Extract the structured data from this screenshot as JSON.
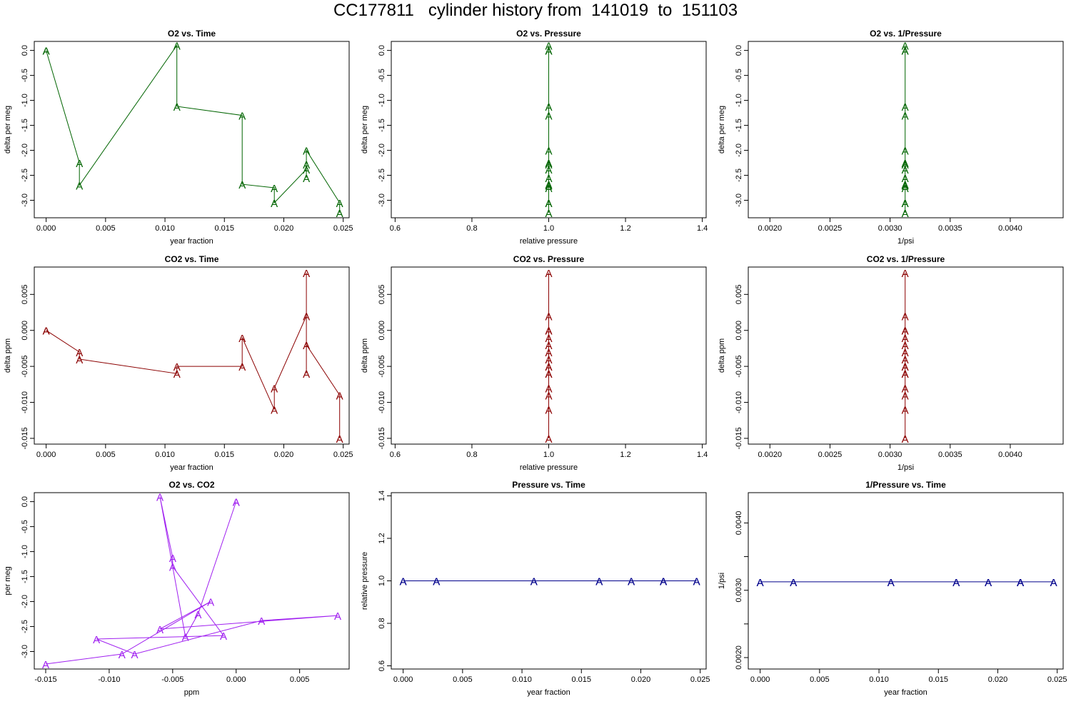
{
  "title": "CC177811   cylinder history from  141019  to  151103",
  "marker_label": "A",
  "colors": {
    "o2": "#006400",
    "co2": "#8b0000",
    "o2co2": "#a020f0",
    "pressure": "#00008b"
  },
  "chart_data": [
    {
      "type": "line",
      "title": "O2 vs. Time",
      "xlabel": "year fraction",
      "ylabel": "delta per meg",
      "xlim": [
        -0.001,
        0.0255
      ],
      "ylim": [
        -3.35,
        0.18
      ],
      "xticks": [
        "0.000",
        "0.005",
        "0.010",
        "0.015",
        "0.020",
        "0.025"
      ],
      "yticks": [
        "0.0",
        "-0.5",
        "-1.0",
        "-1.5",
        "-2.0",
        "-2.5",
        "-3.0"
      ],
      "color_key": "o2",
      "x": [
        0,
        0,
        0.0028,
        0.0028,
        0.011,
        0.011,
        0.0165,
        0.0165,
        0.0192,
        0.0192,
        0.0219,
        0.0219,
        0.0219,
        0.0219,
        0.0247,
        0.0247
      ],
      "y": [
        0,
        0,
        -2.25,
        -2.7,
        0.1,
        -1.12,
        -1.3,
        -2.68,
        -2.75,
        -3.05,
        -2.38,
        -2.28,
        -2.55,
        -2.0,
        -3.05,
        -3.25
      ]
    },
    {
      "type": "line",
      "title": "O2 vs. Pressure",
      "xlabel": "relative pressure",
      "ylabel": "delta per meg",
      "xlim": [
        0.59,
        1.41
      ],
      "ylim": [
        -3.35,
        0.18
      ],
      "xticks": [
        "0.6",
        "0.8",
        "1.0",
        "1.2",
        "1.4"
      ],
      "yticks": [
        "0.0",
        "-0.5",
        "-1.0",
        "-1.5",
        "-2.0",
        "-2.5",
        "-3.0"
      ],
      "color_key": "o2",
      "x": [
        1,
        1,
        1,
        1,
        1,
        1,
        1,
        1,
        1,
        1,
        1,
        1,
        1,
        1,
        1,
        1
      ],
      "y": [
        0,
        0,
        -2.25,
        -2.7,
        0.1,
        -1.12,
        -1.3,
        -2.68,
        -2.75,
        -3.05,
        -2.38,
        -2.28,
        -2.55,
        -2.0,
        -3.05,
        -3.25
      ]
    },
    {
      "type": "line",
      "title": "O2 vs. 1/Pressure",
      "xlabel": "1/psi",
      "ylabel": "delta per meg",
      "xlim": [
        0.00182,
        0.00444
      ],
      "ylim": [
        -3.35,
        0.18
      ],
      "xticks": [
        "0.0020",
        "0.0025",
        "0.0030",
        "0.0035",
        "0.0040"
      ],
      "yticks": [
        "0.0",
        "-0.5",
        "-1.0",
        "-1.5",
        "-2.0",
        "-2.5",
        "-3.0"
      ],
      "color_key": "o2",
      "x": [
        0.003125,
        0.003125,
        0.003125,
        0.003125,
        0.003125,
        0.003125,
        0.003125,
        0.003125,
        0.003125,
        0.003125,
        0.003125,
        0.003125,
        0.003125,
        0.003125,
        0.003125,
        0.003125
      ],
      "y": [
        0,
        0,
        -2.25,
        -2.7,
        0.1,
        -1.12,
        -1.3,
        -2.68,
        -2.75,
        -3.05,
        -2.38,
        -2.28,
        -2.55,
        -2.0,
        -3.05,
        -3.25
      ]
    },
    {
      "type": "line",
      "title": "CO2 vs. Time",
      "xlabel": "year fraction",
      "ylabel": "delta ppm",
      "xlim": [
        -0.001,
        0.0255
      ],
      "ylim": [
        -0.0158,
        0.0088
      ],
      "xticks": [
        "0.000",
        "0.005",
        "0.010",
        "0.015",
        "0.020",
        "0.025"
      ],
      "yticks": [
        "0.005",
        "0.000",
        "-0.005",
        "-0.010",
        "-0.015"
      ],
      "color_key": "co2",
      "x": [
        0,
        0,
        0.0028,
        0.0028,
        0.011,
        0.011,
        0.0165,
        0.0165,
        0.0192,
        0.0192,
        0.0219,
        0.0219,
        0.0219,
        0.0219,
        0.0247,
        0.0247
      ],
      "y": [
        0,
        0,
        -0.003,
        -0.004,
        -0.006,
        -0.005,
        -0.005,
        -0.001,
        -0.011,
        -0.008,
        0.002,
        0.008,
        -0.006,
        -0.002,
        -0.009,
        -0.015
      ]
    },
    {
      "type": "line",
      "title": "CO2 vs. Pressure",
      "xlabel": "relative pressure",
      "ylabel": "delta ppm",
      "xlim": [
        0.59,
        1.41
      ],
      "ylim": [
        -0.0158,
        0.0088
      ],
      "xticks": [
        "0.6",
        "0.8",
        "1.0",
        "1.2",
        "1.4"
      ],
      "yticks": [
        "0.005",
        "0.000",
        "-0.005",
        "-0.010",
        "-0.015"
      ],
      "color_key": "co2",
      "x": [
        1,
        1,
        1,
        1,
        1,
        1,
        1,
        1,
        1,
        1,
        1,
        1,
        1,
        1,
        1,
        1
      ],
      "y": [
        0,
        0,
        -0.003,
        -0.004,
        -0.006,
        -0.005,
        -0.005,
        -0.001,
        -0.011,
        -0.008,
        0.002,
        0.008,
        -0.006,
        -0.002,
        -0.009,
        -0.015
      ]
    },
    {
      "type": "line",
      "title": "CO2 vs. 1/Pressure",
      "xlabel": "1/psi",
      "ylabel": "delta ppm",
      "xlim": [
        0.00182,
        0.00444
      ],
      "ylim": [
        -0.0158,
        0.0088
      ],
      "xticks": [
        "0.0020",
        "0.0025",
        "0.0030",
        "0.0035",
        "0.0040"
      ],
      "yticks": [
        "0.005",
        "0.000",
        "-0.005",
        "-0.010",
        "-0.015"
      ],
      "color_key": "co2",
      "x": [
        0.003125,
        0.003125,
        0.003125,
        0.003125,
        0.003125,
        0.003125,
        0.003125,
        0.003125,
        0.003125,
        0.003125,
        0.003125,
        0.003125,
        0.003125,
        0.003125,
        0.003125,
        0.003125
      ],
      "y": [
        0,
        0,
        -0.003,
        -0.004,
        -0.006,
        -0.005,
        -0.005,
        -0.001,
        -0.011,
        -0.008,
        0.002,
        0.008,
        -0.006,
        -0.002,
        -0.009,
        -0.015
      ]
    },
    {
      "type": "line",
      "title": "O2 vs. CO2",
      "xlabel": "ppm",
      "ylabel": "per meg",
      "xlim": [
        -0.0159,
        0.0089
      ],
      "ylim": [
        -3.35,
        0.18
      ],
      "xticks": [
        "-0.015",
        "-0.010",
        "-0.005",
        "0.000",
        "0.005"
      ],
      "yticks": [
        "0.0",
        "-0.5",
        "-1.0",
        "-1.5",
        "-2.0",
        "-2.5",
        "-3.0"
      ],
      "color_key": "o2co2",
      "x": [
        0,
        0,
        -0.003,
        -0.004,
        -0.006,
        -0.005,
        -0.005,
        -0.001,
        -0.011,
        -0.008,
        0.002,
        0.008,
        -0.006,
        -0.002,
        -0.009,
        -0.015
      ],
      "y": [
        0,
        0,
        -2.25,
        -2.7,
        0.1,
        -1.12,
        -1.3,
        -2.68,
        -2.75,
        -3.05,
        -2.38,
        -2.28,
        -2.55,
        -2.0,
        -3.05,
        -3.25
      ]
    },
    {
      "type": "line",
      "title": "Pressure vs. Time",
      "xlabel": "year fraction",
      "ylabel": "relative pressure",
      "xlim": [
        -0.001,
        0.0255
      ],
      "ylim": [
        0.585,
        1.415
      ],
      "xticks": [
        "0.000",
        "0.005",
        "0.010",
        "0.015",
        "0.020",
        "0.025"
      ],
      "yticks": [
        "0.6",
        "0.8",
        "1.0",
        "1.2",
        "1.4"
      ],
      "color_key": "pressure",
      "x": [
        0,
        0,
        0.0028,
        0.0028,
        0.011,
        0.011,
        0.0165,
        0.0165,
        0.0192,
        0.0192,
        0.0219,
        0.0219,
        0.0219,
        0.0219,
        0.0247,
        0.0247
      ],
      "y": [
        1,
        1,
        1,
        1,
        1,
        1,
        1,
        1,
        1,
        1,
        1,
        1,
        1,
        1,
        1,
        1
      ]
    },
    {
      "type": "line",
      "title": "1/Pressure vs. Time",
      "xlabel": "year fraction",
      "ylabel": "1/psi",
      "xlim": [
        -0.001,
        0.0255
      ],
      "ylim": [
        0.00183,
        0.00445
      ],
      "xticks": [
        "0.000",
        "0.005",
        "0.010",
        "0.015",
        "0.020",
        "0.025"
      ],
      "yticks": [
        "0.0020",
        "",
        "0.0030",
        "",
        "0.0040"
      ],
      "color_key": "pressure",
      "x": [
        0,
        0,
        0.0028,
        0.0028,
        0.011,
        0.011,
        0.0165,
        0.0165,
        0.0192,
        0.0192,
        0.0219,
        0.0219,
        0.0219,
        0.0219,
        0.0247,
        0.0247
      ],
      "y": [
        0.003125,
        0.003125,
        0.003125,
        0.003125,
        0.003125,
        0.003125,
        0.003125,
        0.003125,
        0.003125,
        0.003125,
        0.003125,
        0.003125,
        0.003125,
        0.003125,
        0.003125,
        0.003125
      ]
    }
  ]
}
